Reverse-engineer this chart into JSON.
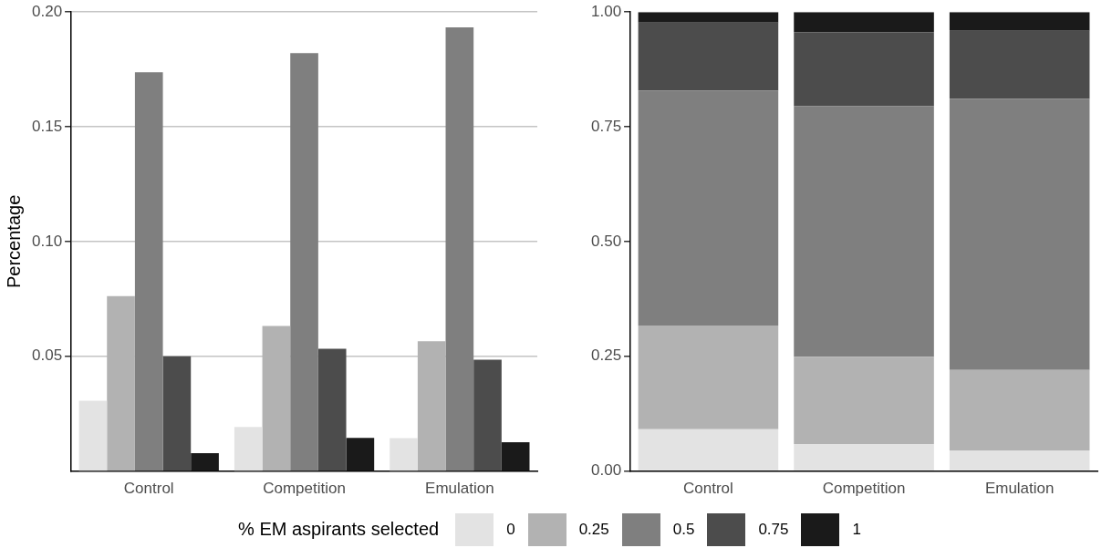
{
  "chart_data": [
    {
      "type": "bar",
      "ylabel": "Percentage",
      "categories": [
        "Control",
        "Competition",
        "Emulation"
      ],
      "ylim": [
        0,
        0.2
      ],
      "yticks": [
        {
          "value": 0.05,
          "label": "0.05"
        },
        {
          "value": 0.1,
          "label": "0.10"
        },
        {
          "value": 0.15,
          "label": "0.15"
        },
        {
          "value": 0.2,
          "label": "0.20"
        }
      ],
      "grid": "y",
      "legend": "bottom",
      "legend_title": "% EM aspirants selected",
      "series": [
        {
          "name": "0",
          "color": "#e3e3e3",
          "values": [
            0.0306,
            0.0192,
            0.0143
          ]
        },
        {
          "name": "0.25",
          "color": "#b2b2b2",
          "values": [
            0.0762,
            0.0632,
            0.0566
          ]
        },
        {
          "name": "0.5",
          "color": "#7f7f7f",
          "values": [
            0.1738,
            0.1821,
            0.1933
          ]
        },
        {
          "name": "0.75",
          "color": "#4c4c4c",
          "values": [
            0.05,
            0.0533,
            0.0485
          ]
        },
        {
          "name": "1",
          "color": "#1a1a1a",
          "values": [
            0.0078,
            0.0144,
            0.0126
          ]
        }
      ]
    },
    {
      "type": "bar",
      "stacked": true,
      "categories": [
        "Control",
        "Competition",
        "Emulation"
      ],
      "ylim": [
        0,
        1
      ],
      "yticks": [
        {
          "value": 0,
          "label": "0.00"
        },
        {
          "value": 0.25,
          "label": "0.25"
        },
        {
          "value": 0.5,
          "label": "0.50"
        },
        {
          "value": 0.75,
          "label": "0.75"
        },
        {
          "value": 1,
          "label": "1.00"
        }
      ],
      "series": [
        {
          "color": "#e3e3e3",
          "values": [
            0.091,
            0.059,
            0.045
          ]
        },
        {
          "color": "#b2b2b2",
          "values": [
            0.226,
            0.19,
            0.175
          ]
        },
        {
          "color": "#7f7f7f",
          "values": [
            0.512,
            0.546,
            0.591
          ]
        },
        {
          "color": "#4c4c4c",
          "values": [
            0.148,
            0.161,
            0.148
          ]
        },
        {
          "color": "#1a1a1a",
          "values": [
            0.023,
            0.044,
            0.041
          ]
        }
      ]
    }
  ]
}
